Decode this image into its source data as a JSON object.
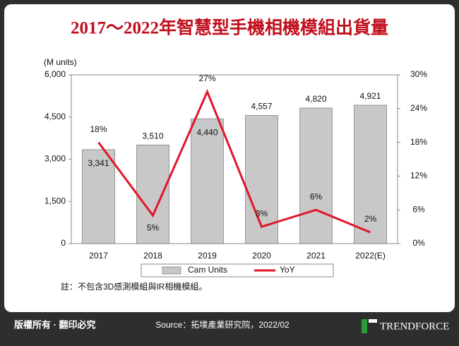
{
  "chart_data": {
    "type": "bar",
    "title": "2017～2022年智慧型手機相機模組出貨量",
    "y_label": "(M units)",
    "categories": [
      "2017",
      "2018",
      "2019",
      "2020",
      "2021",
      "2022(E)"
    ],
    "series": [
      {
        "name": "Cam Units",
        "type": "bar",
        "color": "#c8c8c8",
        "values": [
          3341,
          3510,
          4440,
          4557,
          4820,
          4921
        ],
        "value_labels": [
          "3,341",
          "3,510",
          "4,440",
          "4,557",
          "4,820",
          "4,921"
        ]
      },
      {
        "name": "YoY",
        "type": "line",
        "axis": "y2",
        "color": "#e0162b",
        "values": [
          18,
          5,
          27,
          3,
          6,
          2
        ],
        "value_labels": [
          "18%",
          "5%",
          "27%",
          "3%",
          "6%",
          "2%"
        ]
      }
    ],
    "ylim": [
      0,
      6000
    ],
    "yticks": [
      0,
      {
        "value": 1500,
        "label": "1,500"
      },
      {
        "value": 3000,
        "label": "3,000"
      },
      {
        "value": 4500,
        "label": "4,500"
      },
      {
        "value": 6000,
        "label": "6,000"
      }
    ],
    "y2lim": [
      0,
      30
    ],
    "y2ticks": [
      {
        "value": 0,
        "label": "0%"
      },
      {
        "value": 6,
        "label": "6%"
      },
      {
        "value": 12,
        "label": "12%"
      },
      {
        "value": 18,
        "label": "18%"
      },
      {
        "value": 24,
        "label": "24%"
      },
      {
        "value": 30,
        "label": "30%"
      }
    ],
    "legend": "bottom"
  },
  "note": "註：不包含3D感測模組與IR相機模組。",
  "footer": {
    "copyright": "版權所有 · 翻印必究",
    "source": "Source：拓墣產業研究院，2022/02",
    "logo": "TRENDFORCE"
  }
}
